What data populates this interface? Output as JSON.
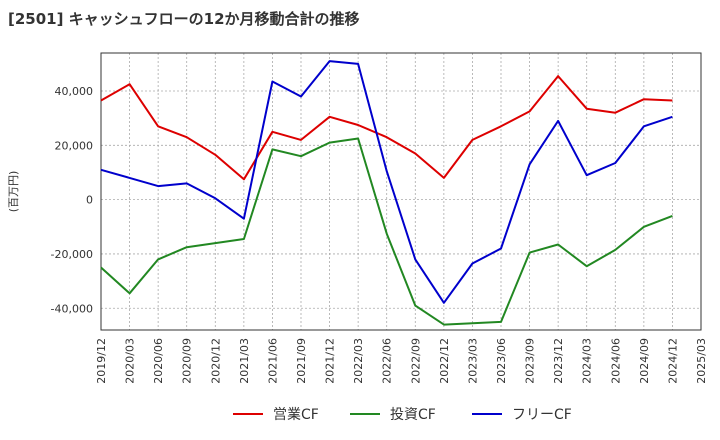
{
  "chart_data": {
    "type": "line",
    "title": "[2501]  キャッシュフローの12か月移動合計の推移",
    "ylabel": "(百万円)",
    "xlabel": "",
    "ylim": [
      -48000,
      54000
    ],
    "yticks": [
      -40000,
      -20000,
      0,
      20000,
      40000
    ],
    "ytick_labels": [
      "-40,000",
      "-20,000",
      "0",
      "20,000",
      "40,000"
    ],
    "categories": [
      "2019/12",
      "2020/03",
      "2020/06",
      "2020/09",
      "2020/12",
      "2021/03",
      "2021/06",
      "2021/09",
      "2021/12",
      "2022/03",
      "2022/06",
      "2022/09",
      "2022/12",
      "2023/03",
      "2023/06",
      "2023/09",
      "2023/12",
      "2024/03",
      "2024/06",
      "2024/09",
      "2024/12",
      "2025/03"
    ],
    "grid": true,
    "legend_position": "bottom",
    "series": [
      {
        "name": "営業CF",
        "color": "#dd0000",
        "values": [
          36500,
          42500,
          27000,
          23000,
          16500,
          7500,
          25000,
          22000,
          30500,
          27500,
          23000,
          17000,
          8000,
          22000,
          27000,
          32500,
          45500,
          33500,
          32000,
          37000,
          36500,
          null
        ]
      },
      {
        "name": "投資CF",
        "color": "#228822",
        "values": [
          -25000,
          -34500,
          -22000,
          -17500,
          -16000,
          -14500,
          18500,
          16000,
          21000,
          22500,
          -12500,
          -39000,
          -46000,
          -45500,
          -45000,
          -19500,
          -16500,
          -24500,
          -18500,
          -10000,
          -6000,
          null
        ]
      },
      {
        "name": "フリーCF",
        "color": "#0000cc",
        "values": [
          11000,
          8000,
          5000,
          6000,
          500,
          -7000,
          43500,
          38000,
          51000,
          50000,
          10500,
          -22000,
          -38000,
          -23500,
          -18000,
          13000,
          29000,
          9000,
          13500,
          27000,
          30500,
          null
        ]
      }
    ]
  }
}
